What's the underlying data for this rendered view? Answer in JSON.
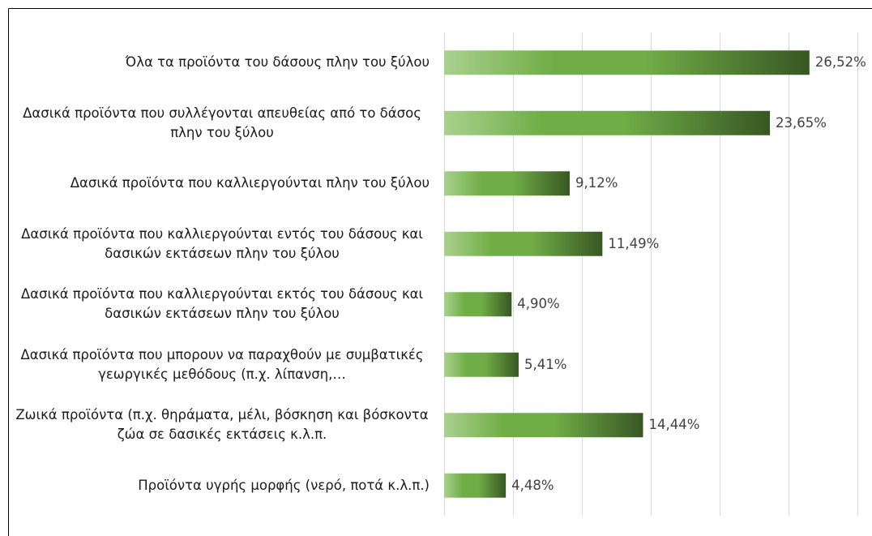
{
  "chart_data": {
    "type": "barh",
    "categories": [
      "Όλα τα προϊόντα του δάσους πλην του ξύλου",
      "Δασικά προϊόντα που συλλέγονται απευθείας από το δάσος πλην του ξύλου",
      "Δασικά προϊόντα που καλλιεργούνται πλην του ξύλου",
      "Δασικά προϊόντα που καλλιεργούνται εντός του δάσους και δασικών εκτάσεων πλην του ξύλου",
      "Δασικά προϊόντα που καλλιεργούνται εκτός του δάσους και δασικών εκτάσεων πλην του ξύλου",
      "Δασικά προϊόντα που μπορουν να παραχθούν με συμβατικές γεωργικές μεθόδους (π.χ. λίπανση,…",
      "Ζωικά προϊόντα (π.χ. θηράματα, μέλι, βόσκηση και βόσκοντα ζώα σε δασικές εκτάσεις κ.λ.π.",
      "Προϊόντα υγρής μορφής (νερό, ποτά κ.λ.π.)"
    ],
    "values": [
      26.52,
      23.65,
      9.12,
      11.49,
      4.9,
      5.41,
      14.44,
      4.48
    ],
    "value_labels": [
      "26,52%",
      "23,65%",
      "9,12%",
      "11,49%",
      "4,90%",
      "5,41%",
      "14,44%",
      "4,48%"
    ],
    "colors": [
      "#a9d18e",
      "#70ad47",
      "#385723"
    ],
    "xlim": [
      0,
      30
    ],
    "xticks": [
      0,
      5,
      10,
      15,
      20,
      25,
      30
    ],
    "grid": true
  }
}
